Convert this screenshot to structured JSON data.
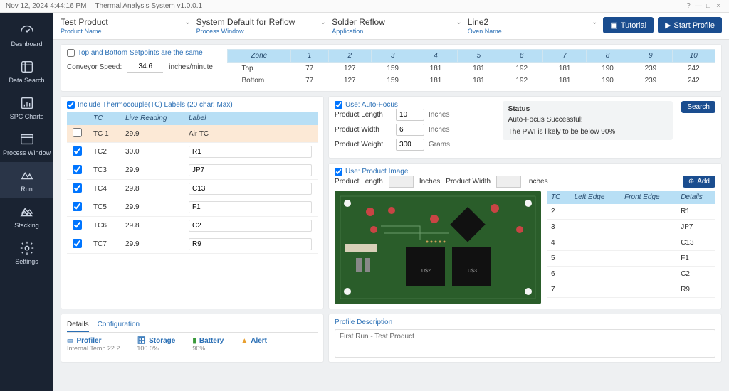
{
  "timestamp": "Nov 12, 2024 4:44:16 PM",
  "app_title": "Thermal Analysis System v1.0.0.1",
  "sidebar": [
    {
      "label": "Dashboard",
      "icon": "gauge"
    },
    {
      "label": "Data Search",
      "icon": "data"
    },
    {
      "label": "SPC Charts",
      "icon": "chart"
    },
    {
      "label": "Process Window",
      "icon": "window"
    },
    {
      "label": "Run",
      "icon": "run",
      "active": true
    },
    {
      "label": "Stacking",
      "icon": "stack"
    },
    {
      "label": "Settings",
      "icon": "gear"
    }
  ],
  "selectors": [
    {
      "value": "Test Product",
      "caption": "Product Name"
    },
    {
      "value": "System Default for Reflow",
      "caption": "Process Window"
    },
    {
      "value": "Solder Reflow",
      "caption": "Application"
    },
    {
      "value": "Line2",
      "caption": "Oven Name"
    }
  ],
  "buttons": {
    "tutorial": "Tutorial",
    "start": "Start Profile",
    "search": "Search",
    "add": "Add"
  },
  "setpoints_same_label": "Top and Bottom Setpoints are the same",
  "conveyor_label": "Conveyor Speed:",
  "conveyor_value": "34.6",
  "conveyor_unit": "inches/minute",
  "zones": {
    "header": "Zone",
    "cols": [
      "1",
      "2",
      "3",
      "4",
      "5",
      "6",
      "7",
      "8",
      "9",
      "10"
    ],
    "rows": [
      {
        "name": "Top",
        "vals": [
          "77",
          "127",
          "159",
          "181",
          "181",
          "192",
          "181",
          "190",
          "239",
          "242"
        ]
      },
      {
        "name": "Bottom",
        "vals": [
          "77",
          "127",
          "159",
          "181",
          "181",
          "192",
          "181",
          "190",
          "239",
          "242"
        ]
      }
    ]
  },
  "tc_include_label": "Include Thermocouple(TC)  Labels (20 char. Max)",
  "tc_headers": {
    "tc": "TC",
    "reading": "Live Reading",
    "label": "Label"
  },
  "tc_rows": [
    {
      "tc": "TC 1",
      "reading": "29.9",
      "label": "Air TC",
      "hl": true,
      "chk": false
    },
    {
      "tc": "TC2",
      "reading": "30.0",
      "label": "R1",
      "chk": true
    },
    {
      "tc": "TC3",
      "reading": "29.9",
      "label": "JP7",
      "chk": true
    },
    {
      "tc": "TC4",
      "reading": "29.8",
      "label": "C13",
      "chk": true
    },
    {
      "tc": "TC5",
      "reading": "29.9",
      "label": "F1",
      "chk": true
    },
    {
      "tc": "TC6",
      "reading": "29.8",
      "label": "C2",
      "chk": true
    },
    {
      "tc": "TC7",
      "reading": "29.9",
      "label": "R9",
      "chk": true
    }
  ],
  "autofocus": {
    "use_label": "Use: Auto-Focus",
    "length_label": "Product Length",
    "length_val": "10",
    "width_label": "Product Width",
    "width_val": "6",
    "weight_label": "Product Weight",
    "weight_val": "300",
    "inches": "Inches",
    "grams": "Grams",
    "status_title": "Status",
    "status_line1": "Auto-Focus Successful!",
    "status_line2": "The PWI is likely to be below 90%"
  },
  "product_image": {
    "use_label": "Use: Product Image",
    "length_label": "Product Length",
    "width_label": "Product Width",
    "inches": "Inches",
    "table_headers": {
      "tc": "TC",
      "left": "Left Edge",
      "front": "Front Edge",
      "details": "Details"
    },
    "rows": [
      {
        "tc": "2",
        "left": "",
        "front": "",
        "details": "R1"
      },
      {
        "tc": "3",
        "left": "",
        "front": "",
        "details": "JP7"
      },
      {
        "tc": "4",
        "left": "",
        "front": "",
        "details": "C13"
      },
      {
        "tc": "5",
        "left": "",
        "front": "",
        "details": "F1"
      },
      {
        "tc": "6",
        "left": "",
        "front": "",
        "details": "C2"
      },
      {
        "tc": "7",
        "left": "",
        "front": "",
        "details": "R9"
      }
    ]
  },
  "tabs": {
    "details": "Details",
    "config": "Configuration"
  },
  "status": {
    "profiler": {
      "label": "Profiler",
      "sub": "Internal Temp 22.2"
    },
    "storage": {
      "label": "Storage",
      "sub": "100.0%"
    },
    "battery": {
      "label": "Battery",
      "sub": "90%"
    },
    "alert": {
      "label": "Alert",
      "sub": ""
    }
  },
  "profile_desc": {
    "title": "Profile Description",
    "text": "First Run - Test Product"
  },
  "colors": {
    "accent": "#1a4d8f",
    "sidebar": "#1a2332",
    "header_bg": "#b8dff5",
    "link": "#2a6fb5",
    "pcb": "#1a4d1a"
  }
}
